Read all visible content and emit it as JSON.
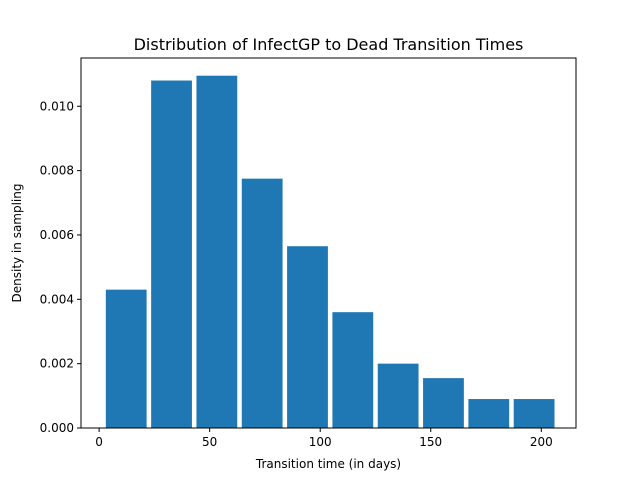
{
  "chart_data": {
    "type": "bar",
    "title": "Distribution of InfectGP to Dead Transition Times",
    "xlabel": "Transition time (in days)",
    "ylabel": "Density in sampling",
    "xlim": [
      -8.2,
      215.7
    ],
    "ylim": [
      0,
      0.0115
    ],
    "xticks": [
      0,
      50,
      100,
      150,
      200
    ],
    "yticks": [
      0.0,
      0.002,
      0.004,
      0.006,
      0.008,
      0.01
    ],
    "ytick_labels": [
      "0.000",
      "0.002",
      "0.004",
      "0.006",
      "0.008",
      "0.010"
    ],
    "color": "#1f77b4",
    "bins": [
      {
        "x0": 2.0,
        "x1": 22.5,
        "density": 0.0043
      },
      {
        "x0": 22.5,
        "x1": 43.0,
        "density": 0.0108
      },
      {
        "x0": 43.0,
        "x1": 63.5,
        "density": 0.01095
      },
      {
        "x0": 63.5,
        "x1": 84.0,
        "density": 0.00775
      },
      {
        "x0": 84.0,
        "x1": 104.5,
        "density": 0.00565
      },
      {
        "x0": 104.5,
        "x1": 125.0,
        "density": 0.0036
      },
      {
        "x0": 125.0,
        "x1": 145.5,
        "density": 0.002
      },
      {
        "x0": 145.5,
        "x1": 166.0,
        "density": 0.00155
      },
      {
        "x0": 166.0,
        "x1": 186.5,
        "density": 0.0009
      },
      {
        "x0": 186.5,
        "x1": 207.0,
        "density": 0.0009
      }
    ],
    "bar_width_fraction": 0.9,
    "grid": false,
    "legend": "none"
  }
}
